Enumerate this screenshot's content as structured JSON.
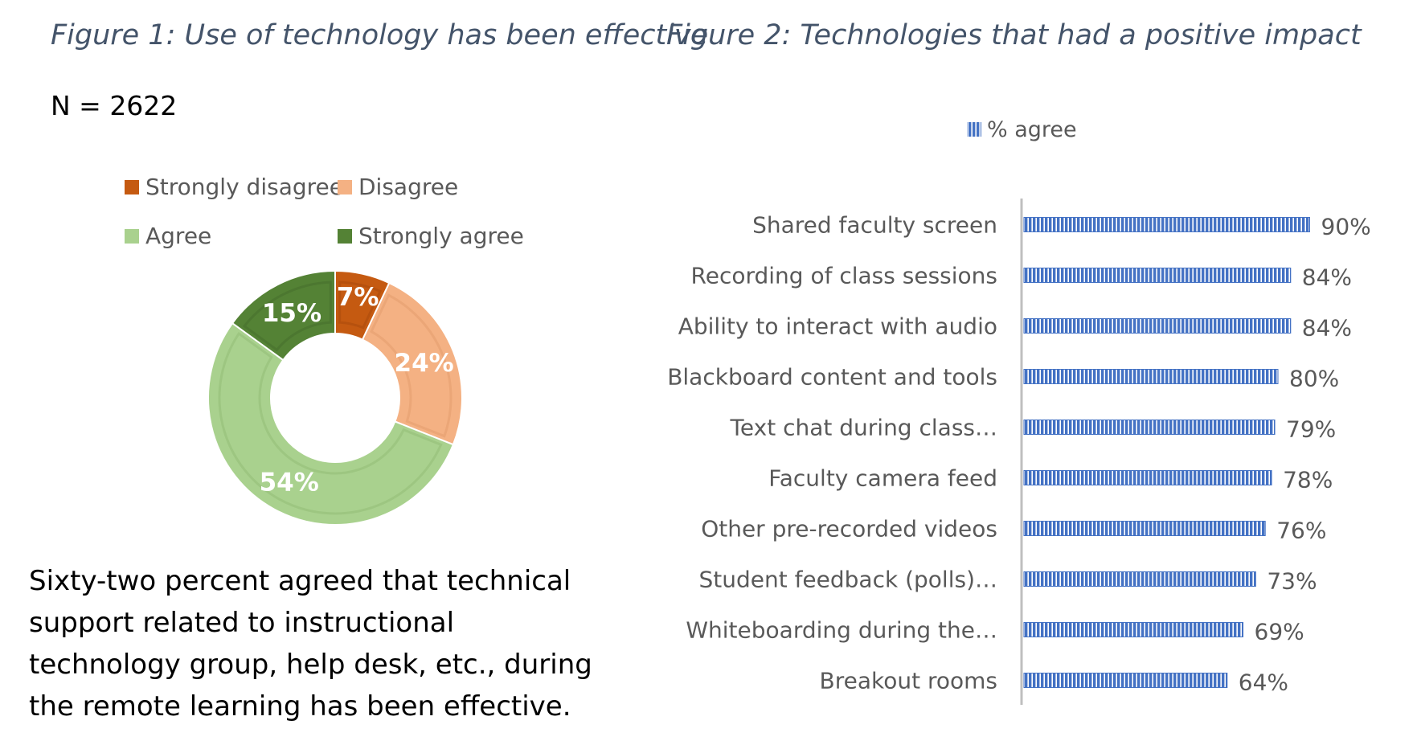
{
  "figure1": {
    "title": "Figure 1: Use of technology has been effective",
    "n_label": "N = 2622",
    "caption": "Sixty-two percent agreed that technical support related to instructional technology group, help desk, etc., during the remote learning has been effective."
  },
  "figure2": {
    "title": "Figure 2: Technologies that had a positive impact"
  },
  "colors": {
    "strongly_disagree": "#c55a11",
    "disagree": "#f4b183",
    "agree": "#a9d18e",
    "strongly_agree": "#548235",
    "bar": "#4472c4"
  },
  "chart_data": [
    {
      "type": "pie",
      "variant": "doughnut",
      "title": "Figure 1: Use of technology has been effective",
      "legend_position": "top",
      "categories": [
        "Strongly disagree",
        "Disagree",
        "Agree",
        "Strongly agree"
      ],
      "values": [
        7,
        24,
        54,
        15
      ],
      "labels": [
        "7%",
        "24%",
        "54%",
        "15%"
      ],
      "unit": "%"
    },
    {
      "type": "bar",
      "orientation": "horizontal",
      "title": "Figure 2: Technologies that had a positive impact",
      "legend_position": "top",
      "series": [
        {
          "name": "% agree",
          "values": [
            90,
            84,
            84,
            80,
            79,
            78,
            76,
            73,
            69,
            64
          ]
        }
      ],
      "categories": [
        "Shared faculty screen",
        "Recording of class sessions",
        "Ability to interact with audio",
        "Blackboard content and tools",
        "Text chat during class…",
        "Faculty camera feed",
        "Other pre-recorded videos",
        "Student feedback (polls)…",
        "Whiteboarding during the…",
        "Breakout rooms"
      ],
      "labels": [
        "90%",
        "84%",
        "84%",
        "80%",
        "79%",
        "78%",
        "76%",
        "73%",
        "69%",
        "64%"
      ],
      "xlim": [
        0,
        100
      ],
      "unit": "%"
    }
  ]
}
